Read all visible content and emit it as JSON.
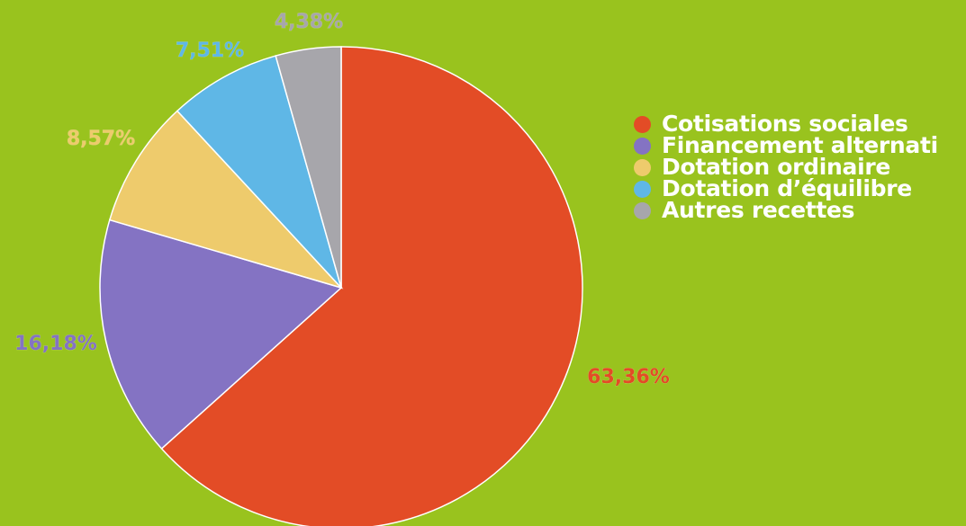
{
  "chart_data": {
    "type": "pie",
    "labels": [
      "Cotisations sociales",
      "Financement alternati",
      "Dotation ordinaire",
      "Dotation d’équilibre",
      "Autres recettes"
    ],
    "values": [
      63.36,
      16.18,
      8.57,
      7.51,
      4.38
    ],
    "value_labels": [
      "63,36%",
      "16,18%",
      "8,57%",
      "7,51%",
      "4,38%"
    ],
    "colors": [
      "#e34c26",
      "#8473c3",
      "#eecb6c",
      "#5fb7e6",
      "#a7a6ab"
    ],
    "legend_position": "right"
  },
  "colors": {
    "background": "#99c31e"
  }
}
